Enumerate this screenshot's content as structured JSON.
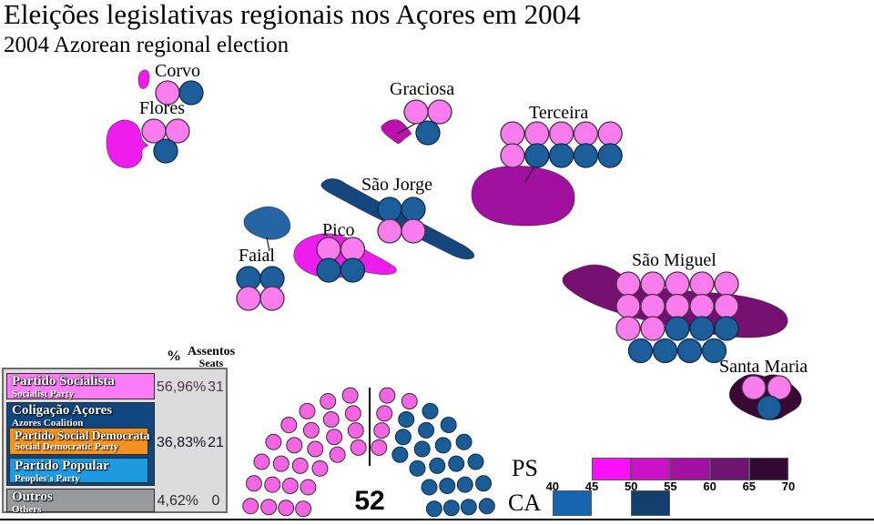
{
  "title": "Eleições legislativas regionais nos Açores em 2004",
  "subtitle": "2004 Azorean regional election",
  "parties": {
    "PS": {
      "dot": "#F87CEB",
      "stroke": "#4a2f4a",
      "hemi": "#F465E3",
      "hemi_stroke": "#3a2a3a"
    },
    "CA": {
      "dot": "#1C5E99",
      "stroke": "#0D2C4F",
      "hemi": "#1A5C96",
      "hemi_stroke": "#0D2C4F"
    }
  },
  "islands": [
    {
      "id": "corvo",
      "name": "Corvo",
      "color": "#EE1DEE",
      "rows": [
        [
          "PS",
          "CA"
        ]
      ]
    },
    {
      "id": "flores",
      "name": "Flores",
      "color": "#EE1DEE",
      "rows": [
        [
          "PS",
          "PS"
        ],
        [
          "CA"
        ]
      ]
    },
    {
      "id": "graciosa",
      "name": "Graciosa",
      "color": "#BB12AE",
      "rows": [
        [
          "PS",
          "PS"
        ],
        [
          "CA"
        ]
      ]
    },
    {
      "id": "terceira",
      "name": "Terceira",
      "color": "#A011A0",
      "rows": [
        [
          "PS",
          "PS",
          "PS",
          "PS",
          "PS"
        ],
        [
          "PS",
          "CA",
          "CA",
          "CA",
          "CA"
        ]
      ]
    },
    {
      "id": "sao-jorge",
      "name": "São Jorge",
      "color": "#14477E",
      "rows": [
        [
          "CA",
          "CA"
        ],
        [
          "PS",
          "PS"
        ]
      ]
    },
    {
      "id": "pico",
      "name": "Pico",
      "color": "#EE1DEE",
      "rows": [
        [
          "PS",
          "PS"
        ],
        [
          "CA",
          "CA"
        ]
      ]
    },
    {
      "id": "faial",
      "name": "Faial",
      "color": "#2664A4",
      "rows": [
        [
          "CA",
          "CA"
        ],
        [
          "PS",
          "PS"
        ]
      ]
    },
    {
      "id": "sao-miguel",
      "name": "São Miguel",
      "color": "#750F70",
      "rows": [
        [
          "PS",
          "PS",
          "PS",
          "PS",
          "PS"
        ],
        [
          "PS",
          "PS",
          "PS",
          "PS",
          "PS"
        ],
        [
          "PS",
          "PS",
          "CA",
          "CA",
          "CA"
        ],
        [
          "CA",
          "CA",
          "CA",
          "CA"
        ]
      ]
    },
    {
      "id": "santa-maria",
      "name": "Santa Maria",
      "color": "#380A33",
      "rows": [
        [
          "PS",
          "PS"
        ],
        [
          "CA"
        ]
      ]
    }
  ],
  "legend": {
    "header_pct": "%",
    "header_seats_pt": "Assentos",
    "header_seats_en": "Seats",
    "rows": [
      {
        "name_pt": "Partido Socialista",
        "name_en": "Socialist Party",
        "color": "#FC7CF8",
        "pct": "56,96%",
        "seats": "31"
      },
      {
        "name_pt": "Coligação Açores",
        "name_en": "Azores Coalition",
        "color": "#0F4880",
        "pct": "36,83%",
        "seats": "21",
        "children": [
          {
            "name_pt": "Partido Social Democrata",
            "name_en": "Social Democratic Party",
            "color": "#F5921E"
          },
          {
            "name_pt": "Partido Popular",
            "name_en": "Peoples's Party",
            "color": "#1F9AE0"
          }
        ]
      },
      {
        "name_pt": "Outros",
        "name_en": "Others",
        "color": "#97999B",
        "pct": "4,62%",
        "seats": "0"
      }
    ]
  },
  "hemicycle": {
    "total_label": "52",
    "ps_seats": 31,
    "ca_seats": 21,
    "total": 52
  },
  "scale": {
    "ps_label": "PS",
    "ca_label": "CA",
    "ticks": [
      "40",
      "45",
      "50",
      "55",
      "60",
      "65",
      "70"
    ],
    "ps_boxes": [
      {
        "from": 45,
        "to": 50,
        "color": "#FA10FA"
      },
      {
        "from": 50,
        "to": 55,
        "color": "#CC12C8"
      },
      {
        "from": 55,
        "to": 60,
        "color": "#A311A3"
      },
      {
        "from": 60,
        "to": 65,
        "color": "#6F1372"
      },
      {
        "from": 65,
        "to": 70,
        "color": "#320932"
      }
    ],
    "ca_boxes": [
      {
        "from": 40,
        "to": 45,
        "color": "#1566AE"
      },
      {
        "from": 50,
        "to": 55,
        "color": "#123F6B"
      }
    ]
  },
  "chart_data": {
    "type": "table",
    "title": "Eleições legislativas regionais nos Açores em 2004 / 2004 Azorean regional election",
    "total_seats": 52,
    "results": [
      {
        "party": "Partido Socialista (PS)",
        "percent": 56.96,
        "seats": 31
      },
      {
        "party": "Coligação Açores (PSD + PP)",
        "percent": 36.83,
        "seats": 21
      },
      {
        "party": "Outros / Others",
        "percent": 4.62,
        "seats": 0
      }
    ],
    "seats_by_island": [
      {
        "island": "Corvo",
        "PS": 1,
        "CA": 1
      },
      {
        "island": "Flores",
        "PS": 2,
        "CA": 1
      },
      {
        "island": "Graciosa",
        "PS": 2,
        "CA": 1
      },
      {
        "island": "Terceira",
        "PS": 6,
        "CA": 4
      },
      {
        "island": "São Jorge",
        "PS": 2,
        "CA": 2
      },
      {
        "island": "Pico",
        "PS": 2,
        "CA": 2
      },
      {
        "island": "Faial",
        "PS": 2,
        "CA": 2
      },
      {
        "island": "São Miguel",
        "PS": 12,
        "CA": 7
      },
      {
        "island": "Santa Maria",
        "PS": 2,
        "CA": 1
      }
    ],
    "color_scale": {
      "ps_percent_bins": [
        45,
        50,
        55,
        60,
        65,
        70
      ],
      "ca_percent_bins": [
        40,
        45,
        50,
        55
      ]
    }
  }
}
